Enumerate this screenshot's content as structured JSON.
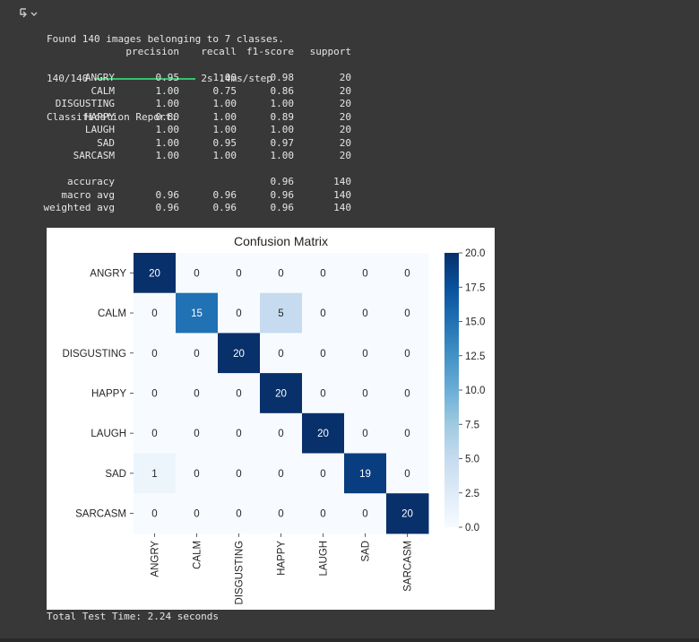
{
  "output": {
    "found_line": "Found 140 images belonging to 7 classes.",
    "progress": {
      "count": "140/140",
      "timing": "2s 14ms/step",
      "fraction": 1.0
    },
    "report_title": "Classification Report:",
    "report_headers": [
      "precision",
      "recall",
      "f1-score",
      "support"
    ],
    "report_rows": [
      {
        "label": "ANGRY",
        "precision": "0.95",
        "recall": "1.00",
        "f1": "0.98",
        "support": "20"
      },
      {
        "label": "CALM",
        "precision": "1.00",
        "recall": "0.75",
        "f1": "0.86",
        "support": "20"
      },
      {
        "label": "DISGUSTING",
        "precision": "1.00",
        "recall": "1.00",
        "f1": "1.00",
        "support": "20"
      },
      {
        "label": "HAPPY",
        "precision": "0.80",
        "recall": "1.00",
        "f1": "0.89",
        "support": "20"
      },
      {
        "label": "LAUGH",
        "precision": "1.00",
        "recall": "1.00",
        "f1": "1.00",
        "support": "20"
      },
      {
        "label": "SAD",
        "precision": "1.00",
        "recall": "0.95",
        "f1": "0.97",
        "support": "20"
      },
      {
        "label": "SARCASM",
        "precision": "1.00",
        "recall": "1.00",
        "f1": "1.00",
        "support": "20"
      }
    ],
    "summary_rows": [
      {
        "label": "accuracy",
        "precision": "",
        "recall": "",
        "f1": "0.96",
        "support": "140"
      },
      {
        "label": "macro avg",
        "precision": "0.96",
        "recall": "0.96",
        "f1": "0.96",
        "support": "140"
      },
      {
        "label": "weighted avg",
        "precision": "0.96",
        "recall": "0.96",
        "f1": "0.96",
        "support": "140"
      }
    ],
    "footer": "Total Test Time: 2.24 seconds"
  },
  "icons": {
    "gutter": "output-toggle-icon"
  },
  "colors": {
    "bg": "#383838",
    "progress": "#32c36c",
    "cmap_low": "#f7fbff",
    "cmap_high": "#08306b"
  },
  "chart_data": {
    "type": "heatmap",
    "title": "Confusion Matrix",
    "xlabel": "",
    "ylabel": "",
    "rows": [
      "ANGRY",
      "CALM",
      "DISGUSTING",
      "HAPPY",
      "LAUGH",
      "SAD",
      "SARCASM"
    ],
    "cols": [
      "ANGRY",
      "CALM",
      "DISGUSTING",
      "HAPPY",
      "LAUGH",
      "SAD",
      "SARCASM"
    ],
    "values": [
      [
        20,
        0,
        0,
        0,
        0,
        0,
        0
      ],
      [
        0,
        15,
        0,
        5,
        0,
        0,
        0
      ],
      [
        0,
        0,
        20,
        0,
        0,
        0,
        0
      ],
      [
        0,
        0,
        0,
        20,
        0,
        0,
        0
      ],
      [
        0,
        0,
        0,
        0,
        20,
        0,
        0
      ],
      [
        1,
        0,
        0,
        0,
        0,
        19,
        0
      ],
      [
        0,
        0,
        0,
        0,
        0,
        0,
        20
      ]
    ],
    "colorbar": {
      "range": [
        0,
        20
      ],
      "ticks": [
        "0.0",
        "2.5",
        "5.0",
        "7.5",
        "10.0",
        "12.5",
        "15.0",
        "17.5",
        "20.0"
      ]
    },
    "colormap": "Blues"
  }
}
